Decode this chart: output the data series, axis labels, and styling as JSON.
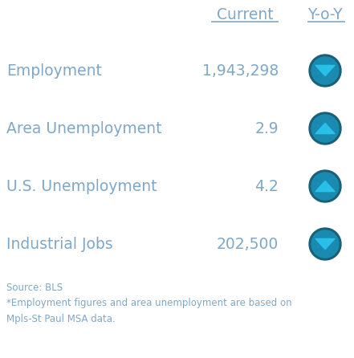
{
  "header_current": "Current",
  "header_yoy": "Y-o-Y",
  "header_color": "#7fa8c8",
  "label_color": "#7fa8c8",
  "rows": [
    {
      "label": "Employment",
      "value": "1,943,298",
      "direction": "down"
    },
    {
      "label": "Area Unemployment",
      "value": "2.9",
      "direction": "up"
    },
    {
      "label": "U.S. Unemployment",
      "value": "4.2",
      "direction": "up"
    },
    {
      "label": "Industrial Jobs",
      "value": "202,500",
      "direction": "down"
    }
  ],
  "circle_outer_color": "#1a5f78",
  "circle_inner_color": "#1a8ab0",
  "arrow_color": "#28c0e8",
  "footer_lines": [
    "Source: BLS",
    "*Employment figures and area unemployment are based on",
    "Mpls-St Paul MSA data."
  ],
  "footer_color": "#7fa8c8",
  "bg_color": "#ffffff",
  "label_fontsize": 13.5,
  "value_fontsize": 13.5,
  "header_fontsize": 13.5,
  "footer_fontsize": 8.5
}
